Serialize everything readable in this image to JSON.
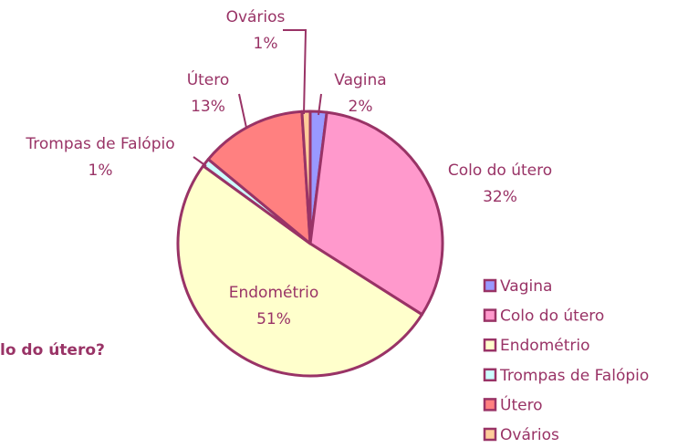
{
  "chart_data": {
    "type": "pie",
    "annotations": [
      "lo do útero?"
    ],
    "categories": [
      "Vagina",
      "Colo do útero",
      "Endométrio",
      "Trompas de Falópio",
      "Útero",
      "Ovários"
    ],
    "values": [
      2,
      32,
      51,
      1,
      13,
      1
    ],
    "value_labels": [
      "2%",
      "32%",
      "51%",
      "1%",
      "13%",
      "1%"
    ],
    "colors": [
      "#9999ff",
      "#ff99cc",
      "#ffffcc",
      "#ccffff",
      "#ff8080",
      "#ffcc99"
    ],
    "legend": "right"
  }
}
